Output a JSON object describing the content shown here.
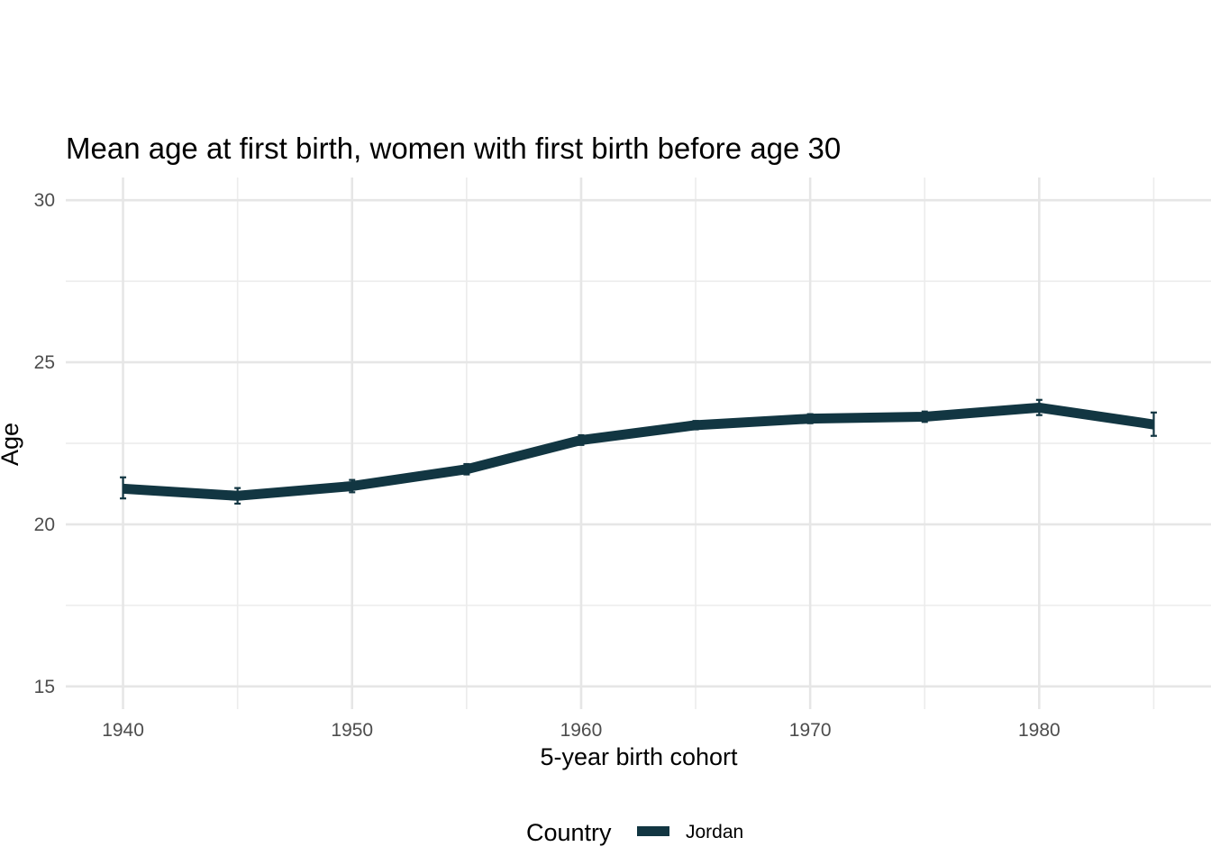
{
  "chart_data": {
    "type": "line",
    "title": "Mean age at first birth, women with first birth before age 30",
    "xlabel": "5-year birth cohort",
    "ylabel": "Age",
    "xlim": [
      1937.5,
      1987.5
    ],
    "ylim": [
      14.3,
      30.7
    ],
    "x_ticks": [
      1940,
      1950,
      1960,
      1970,
      1980
    ],
    "x_tick_labels": [
      "1940",
      "1950",
      "1960",
      "1970",
      "1980"
    ],
    "y_ticks": [
      15,
      20,
      25,
      30
    ],
    "y_tick_labels": [
      "15",
      "20",
      "25",
      "30"
    ],
    "grid": true,
    "legend": {
      "title": "Country",
      "position": "bottom"
    },
    "series": [
      {
        "name": "Jordan",
        "color": "#123642",
        "x": [
          1940,
          1945,
          1950,
          1955,
          1960,
          1965,
          1970,
          1975,
          1980,
          1985
        ],
        "y": [
          21.1,
          20.88,
          21.18,
          21.7,
          22.6,
          23.06,
          23.26,
          23.32,
          23.6,
          23.08
        ],
        "y_low": [
          20.8,
          20.64,
          20.99,
          21.54,
          22.45,
          22.93,
          23.12,
          23.16,
          23.37,
          22.73
        ],
        "y_high": [
          21.45,
          21.12,
          21.37,
          21.86,
          22.75,
          23.19,
          23.4,
          23.48,
          23.84,
          23.45
        ]
      }
    ]
  }
}
